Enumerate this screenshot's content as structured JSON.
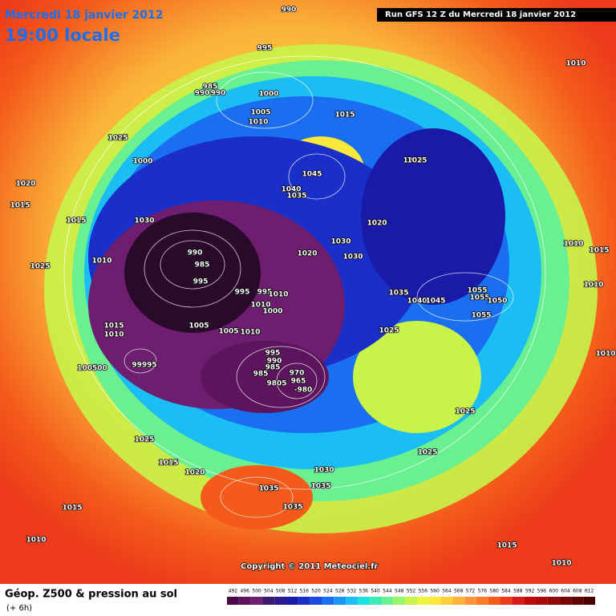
{
  "header": {
    "date": "Mercredi 18 janvier 2012",
    "time": "19:00 locale",
    "run": "Run GFS 12 Z du Mercredi 18 janvier 2012"
  },
  "copyright": "Copyright © 2011 Meteociel.fr",
  "footer": {
    "title": "Géop. Z500 & pression au sol",
    "subtitle": "(+ 6h)"
  },
  "scale": {
    "ticks": [
      492,
      496,
      500,
      504,
      508,
      512,
      516,
      520,
      524,
      528,
      532,
      536,
      540,
      544,
      548,
      552,
      556,
      560,
      564,
      568,
      572,
      576,
      580,
      584,
      588,
      592,
      596,
      600,
      604,
      608,
      612
    ],
    "colors": [
      "#4a0a4a",
      "#5c145c",
      "#6e1e6e",
      "#3a1a6e",
      "#2a1a8e",
      "#1a1aa8",
      "#1a2ec8",
      "#1a4ae0",
      "#1a6ef0",
      "#1a96f4",
      "#1abef4",
      "#1ae0e0",
      "#3aeab8",
      "#6af090",
      "#9af46a",
      "#c8f44a",
      "#eaf43a",
      "#fae83a",
      "#fad03a",
      "#fab43a",
      "#fa963a",
      "#fa7a2a",
      "#f45a1a",
      "#ec3a1a",
      "#d81a1a",
      "#c00a0a",
      "#a80a0a",
      "#900808",
      "#780606",
      "#600404",
      "#480202"
    ]
  },
  "isobars": [
    "990",
    "995",
    "985",
    "990",
    "990",
    "1000",
    "1005",
    "1010",
    "1015",
    "1025",
    "1000",
    "1020",
    "1015",
    "1015",
    "1030",
    "1045",
    "1040",
    "1035",
    "1025",
    "1025",
    "1020",
    "1030",
    "1020",
    "1030",
    "990",
    "985",
    "995",
    "995",
    "995",
    "1000",
    "1010",
    "1010",
    "1005",
    "1005",
    "1010",
    "1015",
    "1010",
    "1025",
    "1010",
    "1035",
    "1040",
    "1045",
    "1055",
    "1055",
    "1050",
    "1055",
    "1025",
    "995",
    "990",
    "985",
    "985",
    "970",
    "965",
    "9805",
    "-980",
    "100500",
    "99995",
    "1010",
    "1015",
    "1010",
    "1010",
    "1025",
    "1025",
    "1025",
    "1015",
    "1020",
    "1035",
    "1035",
    "1035",
    "1030",
    "1015",
    "1010",
    "1010",
    "1015",
    "1010"
  ]
}
